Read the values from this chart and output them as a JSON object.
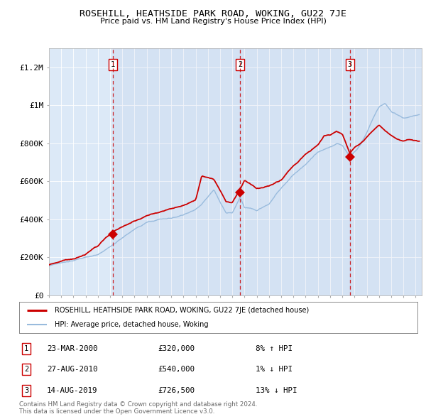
{
  "title": "ROSEHILL, HEATHSIDE PARK ROAD, WOKING, GU22 7JE",
  "subtitle": "Price paid vs. HM Land Registry's House Price Index (HPI)",
  "plot_bg_color": "#dce9f7",
  "ylim": [
    0,
    1300000
  ],
  "yticks": [
    0,
    200000,
    400000,
    600000,
    800000,
    1000000,
    1200000
  ],
  "ytick_labels": [
    "£0",
    "£200K",
    "£400K",
    "£600K",
    "£800K",
    "£1M",
    "£1.2M"
  ],
  "red_line_color": "#cc0000",
  "blue_line_color": "#99bbdd",
  "sale_points": [
    {
      "year": 2000.22,
      "price": 320000,
      "label": "1"
    },
    {
      "year": 2010.65,
      "price": 540000,
      "label": "2"
    },
    {
      "year": 2019.62,
      "price": 726500,
      "label": "3"
    }
  ],
  "vline_years": [
    2000.22,
    2010.65,
    2019.62
  ],
  "legend_red_label": "ROSEHILL, HEATHSIDE PARK ROAD, WOKING, GU22 7JE (detached house)",
  "legend_blue_label": "HPI: Average price, detached house, Woking",
  "table_rows": [
    {
      "num": "1",
      "date": "23-MAR-2000",
      "price": "£320,000",
      "hpi": "8% ↑ HPI"
    },
    {
      "num": "2",
      "date": "27-AUG-2010",
      "price": "£540,000",
      "hpi": "1% ↓ HPI"
    },
    {
      "num": "3",
      "date": "14-AUG-2019",
      "price": "£726,500",
      "hpi": "13% ↓ HPI"
    }
  ],
  "footnote": "Contains HM Land Registry data © Crown copyright and database right 2024.\nThis data is licensed under the Open Government Licence v3.0."
}
